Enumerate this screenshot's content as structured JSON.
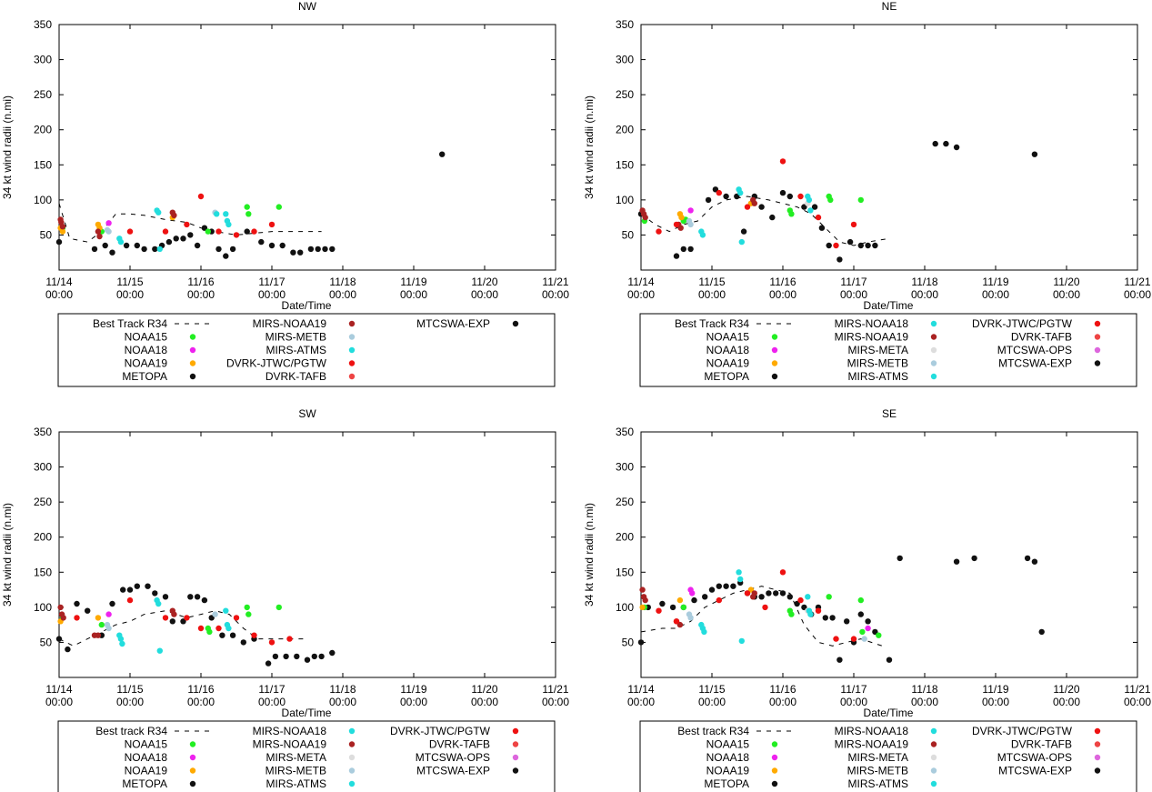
{
  "figure": {
    "x_tick_labels": [
      {
        "top": "11/14",
        "bottom": "00:00"
      },
      {
        "top": "11/15",
        "bottom": "00:00"
      },
      {
        "top": "11/16",
        "bottom": "00:00"
      },
      {
        "top": "11/17",
        "bottom": "00:00"
      },
      {
        "top": "11/18",
        "bottom": "00:00"
      },
      {
        "top": "11/19",
        "bottom": "00:00"
      },
      {
        "top": "11/20",
        "bottom": "00:00"
      },
      {
        "top": "11/21",
        "bottom": "00:00"
      }
    ],
    "y_ticks": [
      50,
      100,
      150,
      200,
      250,
      300,
      350
    ]
  },
  "colors": {
    "NOAA15": "#22ee22",
    "NOAA18": "#ee22ee",
    "NOAA19": "#ffaa00",
    "METOPA": "#111111",
    "MIRS-NOAA18": "#22dddd",
    "MIRS-NOAA19": "#aa2222",
    "MIRS-META": "#dddddd",
    "MIRS-METB": "#aaccdd",
    "MIRS-ATMS": "#22dddd",
    "DVRK-JTWC/PGTW": "#ee1111",
    "DVRK-TAFB": "#ee4444",
    "MTCSWA-OPS": "#dd66dd",
    "MTCSWA-EXP": "#111111"
  },
  "chart_data": [
    {
      "type": "scatter",
      "title": "NW",
      "xlabel": "Date/Time",
      "ylabel": "34 kt wind radii (n.mi)",
      "xlim": [
        0,
        7
      ],
      "ylim": [
        0,
        350
      ],
      "x_unit": "days since 11/14 00:00",
      "legend": [
        [
          "Best Track R34",
          "NOAA15",
          "NOAA18",
          "NOAA19",
          "METOPA"
        ],
        [
          "MIRS-NOAA19",
          "MIRS-METB",
          "MIRS-ATMS",
          "DVRK-JTWC/PGTW",
          "DVRK-TAFB"
        ],
        [
          "MTCSWA-EXP"
        ]
      ],
      "best_track": {
        "x": [
          0,
          0.15,
          0.4,
          0.6,
          0.8,
          1.0,
          1.2,
          1.5,
          1.8,
          2.0,
          2.2,
          2.5,
          2.7,
          3.0,
          3.3,
          3.5,
          3.7
        ],
        "y": [
          95,
          45,
          40,
          55,
          80,
          80,
          78,
          72,
          68,
          60,
          55,
          50,
          52,
          55,
          55,
          55,
          55
        ]
      },
      "series": [
        {
          "name": "METOPA",
          "x": [
            0.0,
            0.5,
            0.65,
            0.75,
            0.95,
            1.1,
            1.2,
            1.35,
            1.45,
            1.55,
            1.65,
            1.75,
            1.85,
            1.95,
            2.05,
            2.15,
            2.25,
            2.35,
            2.45,
            2.65,
            2.85,
            3.0,
            3.15,
            3.3,
            3.4,
            3.55,
            3.65,
            3.75,
            3.85,
            5.4
          ],
          "y": [
            40,
            30,
            35,
            25,
            35,
            35,
            30,
            30,
            35,
            40,
            45,
            45,
            50,
            35,
            60,
            55,
            30,
            20,
            30,
            55,
            40,
            35,
            35,
            25,
            25,
            30,
            30,
            30,
            30,
            165
          ]
        },
        {
          "name": "NOAA15",
          "x": [
            0.05,
            0.6,
            2.1,
            2.65,
            2.67,
            3.1
          ],
          "y": [
            60,
            55,
            55,
            90,
            80,
            90
          ]
        },
        {
          "name": "NOAA18",
          "x": [
            0.7
          ],
          "y": [
            67
          ]
        },
        {
          "name": "NOAA19",
          "x": [
            0.02,
            0.05,
            0.55,
            0.57,
            1.6
          ],
          "y": [
            60,
            55,
            65,
            60,
            75
          ]
        },
        {
          "name": "MIRS-NOAA19",
          "x": [
            0.02,
            0.03,
            0.05,
            0.55,
            0.57,
            1.6,
            1.62
          ],
          "y": [
            72,
            68,
            62,
            55,
            48,
            82,
            78
          ]
        },
        {
          "name": "MIRS-METB",
          "x": [
            0.68,
            0.7,
            2.2
          ],
          "y": [
            57,
            55,
            82
          ]
        },
        {
          "name": "MIRS-ATMS",
          "x": [
            0.85,
            0.87,
            1.38,
            1.4,
            1.42,
            2.22,
            2.35,
            2.37,
            2.39
          ],
          "y": [
            45,
            40,
            85,
            82,
            30,
            80,
            80,
            70,
            65
          ]
        },
        {
          "name": "DVRK-JTWC/PGTW",
          "x": [
            1.0,
            1.5,
            1.8,
            2.0,
            2.25,
            2.5,
            2.75,
            3.0
          ],
          "y": [
            55,
            55,
            65,
            105,
            55,
            50,
            55,
            65
          ]
        }
      ]
    },
    {
      "type": "scatter",
      "title": "NE",
      "xlabel": "Date/Time",
      "ylabel": "34 kt wind radii (n.mi)",
      "xlim": [
        0,
        7
      ],
      "ylim": [
        0,
        350
      ],
      "x_unit": "days since 11/14 00:00",
      "legend": [
        [
          "Best Track R34",
          "NOAA15",
          "NOAA18",
          "NOAA19",
          "METOPA"
        ],
        [
          "MIRS-NOAA18",
          "MIRS-NOAA19",
          "MIRS-META",
          "MIRS-METB",
          "MIRS-ATMS"
        ],
        [
          "DVRK-JTWC/PGTW",
          "DVRK-TAFB",
          "MTCSWA-OPS",
          "MTCSWA-EXP"
        ]
      ],
      "best_track": {
        "x": [
          0,
          0.2,
          0.4,
          0.6,
          0.8,
          1.0,
          1.2,
          1.5,
          1.8,
          2.0,
          2.2,
          2.4,
          2.6,
          2.8,
          3.0,
          3.2,
          3.5
        ],
        "y": [
          80,
          65,
          55,
          65,
          70,
          90,
          100,
          105,
          100,
          95,
          90,
          80,
          60,
          40,
          35,
          40,
          45
        ]
      },
      "series": [
        {
          "name": "METOPA",
          "x": [
            0.0,
            0.5,
            0.6,
            0.7,
            0.95,
            1.05,
            1.2,
            1.35,
            1.45,
            1.6,
            1.7,
            1.85,
            2.0,
            2.1,
            2.3,
            2.45,
            2.55,
            2.65,
            2.8,
            2.95,
            3.1,
            3.2,
            3.3,
            4.15,
            4.3,
            4.45,
            5.55
          ],
          "y": [
            80,
            20,
            30,
            30,
            100,
            115,
            105,
            105,
            55,
            105,
            90,
            75,
            110,
            105,
            90,
            90,
            60,
            35,
            15,
            40,
            35,
            35,
            35,
            180,
            180,
            175,
            165
          ]
        },
        {
          "name": "NOAA15",
          "x": [
            0.05,
            0.6,
            0.63,
            2.1,
            2.12,
            2.65,
            2.67,
            3.1
          ],
          "y": [
            70,
            70,
            72,
            85,
            80,
            105,
            100,
            100
          ]
        },
        {
          "name": "NOAA18",
          "x": [
            0.7
          ],
          "y": [
            85
          ]
        },
        {
          "name": "NOAA19",
          "x": [
            0.55,
            0.57,
            1.55
          ],
          "y": [
            80,
            75,
            95
          ]
        },
        {
          "name": "MIRS-NOAA19",
          "x": [
            0.02,
            0.04,
            0.06,
            0.53,
            0.56,
            1.58,
            1.6
          ],
          "y": [
            85,
            80,
            75,
            65,
            60,
            100,
            95
          ]
        },
        {
          "name": "MIRS-META",
          "x": [
            2.35
          ],
          "y": [
            95
          ]
        },
        {
          "name": "MIRS-METB",
          "x": [
            0.68,
            0.7
          ],
          "y": [
            70,
            65
          ]
        },
        {
          "name": "MIRS-ATMS",
          "x": [
            0.85,
            0.87,
            1.38,
            1.4,
            1.42,
            2.35,
            2.37,
            2.39
          ],
          "y": [
            55,
            50,
            115,
            110,
            40,
            105,
            100,
            85
          ]
        },
        {
          "name": "DVRK-JTWC/PGTW",
          "x": [
            0.25,
            0.5,
            1.1,
            1.5,
            2.0,
            2.25,
            2.5,
            2.75,
            3.0
          ],
          "y": [
            55,
            65,
            110,
            90,
            155,
            105,
            75,
            35,
            65
          ]
        }
      ]
    },
    {
      "type": "scatter",
      "title": "SW",
      "xlabel": "Date/Time",
      "ylabel": "34 kt wind radii (n.mi)",
      "xlim": [
        0,
        7
      ],
      "ylim": [
        0,
        350
      ],
      "x_unit": "days since 11/14 00:00",
      "legend": [
        [
          "Best track R34",
          "NOAA15",
          "NOAA18",
          "NOAA19",
          "METOPA"
        ],
        [
          "MIRS-NOAA18",
          "MIRS-NOAA19",
          "MIRS-META",
          "MIRS-METB",
          "MIRS-ATMS"
        ],
        [
          "DVRK-JTWC/PGTW",
          "DVRK-TAFB",
          "MTCSWA-OPS",
          "MTCSWA-EXP"
        ]
      ],
      "best_track": {
        "x": [
          0,
          0.2,
          0.4,
          0.6,
          0.8,
          1.0,
          1.2,
          1.5,
          1.8,
          2.0,
          2.2,
          2.4,
          2.6,
          2.8,
          3.0,
          3.2,
          3.5
        ],
        "y": [
          55,
          45,
          55,
          65,
          75,
          80,
          90,
          95,
          85,
          90,
          95,
          90,
          70,
          55,
          55,
          55,
          55
        ]
      },
      "series": [
        {
          "name": "METOPA",
          "x": [
            0.0,
            0.12,
            0.25,
            0.4,
            0.6,
            0.75,
            0.9,
            1.0,
            1.1,
            1.25,
            1.35,
            1.5,
            1.6,
            1.75,
            1.85,
            1.95,
            2.05,
            2.15,
            2.3,
            2.45,
            2.6,
            2.75,
            2.95,
            3.05,
            3.2,
            3.35,
            3.5,
            3.6,
            3.7,
            3.85
          ],
          "y": [
            55,
            40,
            105,
            95,
            60,
            105,
            125,
            125,
            130,
            130,
            120,
            115,
            80,
            80,
            115,
            115,
            110,
            85,
            60,
            60,
            50,
            55,
            20,
            30,
            30,
            30,
            25,
            30,
            30,
            35
          ]
        },
        {
          "name": "NOAA15",
          "x": [
            0.05,
            0.6,
            2.1,
            2.12,
            2.65,
            2.67,
            3.1
          ],
          "y": [
            85,
            75,
            70,
            65,
            100,
            90,
            100
          ]
        },
        {
          "name": "NOAA18",
          "x": [
            0.7
          ],
          "y": [
            90
          ]
        },
        {
          "name": "NOAA19",
          "x": [
            0.02,
            0.55
          ],
          "y": [
            80,
            85
          ]
        },
        {
          "name": "MIRS-NOAA19",
          "x": [
            0.02,
            0.04,
            0.06,
            0.5,
            0.55,
            1.6,
            1.62
          ],
          "y": [
            100,
            90,
            85,
            60,
            60,
            95,
            90
          ]
        },
        {
          "name": "MIRS-METB",
          "x": [
            0.68,
            0.7,
            2.2
          ],
          "y": [
            75,
            70,
            90
          ]
        },
        {
          "name": "MIRS-ATMS",
          "x": [
            0.85,
            0.87,
            0.89,
            1.38,
            1.4,
            1.42,
            2.35,
            2.37,
            2.39
          ],
          "y": [
            60,
            55,
            48,
            110,
            105,
            38,
            95,
            75,
            70
          ]
        },
        {
          "name": "DVRK-JTWC/PGTW",
          "x": [
            0.25,
            1.0,
            1.5,
            1.8,
            2.0,
            2.25,
            2.5,
            2.75,
            3.0,
            3.25
          ],
          "y": [
            85,
            110,
            85,
            85,
            70,
            70,
            85,
            60,
            50,
            55
          ]
        }
      ]
    },
    {
      "type": "scatter",
      "title": "SE",
      "xlabel": "Date/Time",
      "ylabel": "34 kt wind radii (n.mi)",
      "xlim": [
        0,
        7
      ],
      "ylim": [
        0,
        350
      ],
      "x_unit": "days since 11/14 00:00",
      "legend": [
        [
          "Best track R34",
          "NOAA15",
          "NOAA18",
          "NOAA19",
          "METOPA"
        ],
        [
          "MIRS-NOAA18",
          "MIRS-NOAA19",
          "MIRS-META",
          "MIRS-METB",
          "MIRS-ATMS"
        ],
        [
          "DVRK-JTWC/PGTW",
          "DVRK-TAFB",
          "MTCSWA-OPS",
          "MTCSWA-EXP"
        ]
      ],
      "best_track": {
        "x": [
          0,
          0.3,
          0.5,
          0.7,
          0.9,
          1.1,
          1.3,
          1.5,
          1.7,
          1.9,
          2.1,
          2.3,
          2.5,
          2.7,
          2.9,
          3.1,
          3.4
        ],
        "y": [
          65,
          70,
          70,
          80,
          100,
          110,
          120,
          125,
          130,
          125,
          120,
          75,
          50,
          45,
          50,
          55,
          45
        ]
      },
      "series": [
        {
          "name": "METOPA",
          "x": [
            0.0,
            0.1,
            0.3,
            0.45,
            0.6,
            0.75,
            0.9,
            1.0,
            1.1,
            1.2,
            1.3,
            1.4,
            1.5,
            1.6,
            1.7,
            1.8,
            1.9,
            2.0,
            2.1,
            2.2,
            2.3,
            2.4,
            2.5,
            2.6,
            2.7,
            2.8,
            2.9,
            3.0,
            3.1,
            3.2,
            3.3,
            3.5,
            3.65,
            4.45,
            4.7,
            5.45,
            5.55,
            5.65
          ],
          "y": [
            50,
            100,
            105,
            100,
            100,
            110,
            115,
            125,
            130,
            130,
            130,
            135,
            120,
            115,
            115,
            120,
            120,
            120,
            115,
            105,
            100,
            90,
            100,
            85,
            85,
            25,
            80,
            50,
            90,
            80,
            65,
            25,
            170,
            165,
            170,
            170,
            165,
            65
          ]
        },
        {
          "name": "NOAA15",
          "x": [
            0.05,
            0.6,
            2.1,
            2.12,
            2.65,
            3.1,
            3.12,
            3.35
          ],
          "y": [
            100,
            100,
            95,
            90,
            115,
            110,
            65,
            60
          ]
        },
        {
          "name": "NOAA18",
          "x": [
            0.7,
            0.72,
            3.2
          ],
          "y": [
            125,
            120,
            70
          ]
        },
        {
          "name": "NOAA19",
          "x": [
            0.02,
            0.55,
            1.55
          ],
          "y": [
            100,
            110,
            125
          ]
        },
        {
          "name": "MIRS-NOAA19",
          "x": [
            0.02,
            0.04,
            0.06,
            0.5,
            0.55,
            1.58,
            1.6
          ],
          "y": [
            125,
            115,
            110,
            80,
            75,
            115,
            120
          ]
        },
        {
          "name": "MIRS-META",
          "x": [
            2.35
          ],
          "y": [
            95
          ]
        },
        {
          "name": "MIRS-METB",
          "x": [
            0.68,
            0.7,
            3.15
          ],
          "y": [
            90,
            85,
            55
          ]
        },
        {
          "name": "MIRS-ATMS",
          "x": [
            0.85,
            0.87,
            0.89,
            1.38,
            1.4,
            1.42,
            2.35,
            2.37,
            2.39
          ],
          "y": [
            75,
            70,
            65,
            150,
            140,
            52,
            115,
            95,
            90
          ]
        },
        {
          "name": "DVRK-JTWC/PGTW",
          "x": [
            0.25,
            0.5,
            1.1,
            1.5,
            1.75,
            2.0,
            2.25,
            2.5,
            2.75,
            3.0
          ],
          "y": [
            95,
            80,
            110,
            120,
            100,
            150,
            110,
            95,
            55,
            55
          ]
        }
      ]
    }
  ]
}
